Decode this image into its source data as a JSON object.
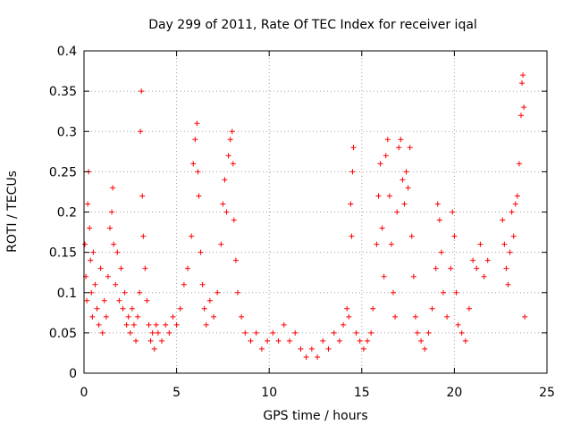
{
  "chart_data": {
    "type": "scatter",
    "title": "Day 299 of 2011, Rate Of TEC Index for receiver iqal",
    "xlabel": "GPS time / hours",
    "ylabel": "ROTI / TECUs",
    "xlim": [
      0,
      25
    ],
    "ylim": [
      0,
      0.4
    ],
    "xticks": [
      0,
      5,
      10,
      15,
      20,
      25
    ],
    "yticks": [
      0,
      0.05,
      0.1,
      0.15,
      0.2,
      0.25,
      0.3,
      0.35,
      0.4
    ],
    "xtick_labels": [
      "0",
      "5",
      "10",
      "15",
      "20",
      "25"
    ],
    "ytick_labels": [
      "0",
      "0.05",
      "0.1",
      "0.15",
      "0.2",
      "0.25",
      "0.3",
      "0.35",
      "0.4"
    ],
    "grid": true,
    "marker": "+",
    "color": "#ff0000",
    "series": [
      {
        "points": [
          [
            0.05,
            0.16
          ],
          [
            0.1,
            0.12
          ],
          [
            0.15,
            0.09
          ],
          [
            0.2,
            0.21
          ],
          [
            0.25,
            0.25
          ],
          [
            0.3,
            0.18
          ],
          [
            0.35,
            0.14
          ],
          [
            0.4,
            0.1
          ],
          [
            0.45,
            0.07
          ],
          [
            0.5,
            0.15
          ],
          [
            0.6,
            0.11
          ],
          [
            0.7,
            0.08
          ],
          [
            0.8,
            0.06
          ],
          [
            0.9,
            0.13
          ],
          [
            1.0,
            0.05
          ],
          [
            1.1,
            0.09
          ],
          [
            1.2,
            0.07
          ],
          [
            1.3,
            0.12
          ],
          [
            1.4,
            0.18
          ],
          [
            1.5,
            0.2
          ],
          [
            1.55,
            0.23
          ],
          [
            1.6,
            0.16
          ],
          [
            1.7,
            0.11
          ],
          [
            1.8,
            0.15
          ],
          [
            1.9,
            0.09
          ],
          [
            2.0,
            0.13
          ],
          [
            2.1,
            0.08
          ],
          [
            2.2,
            0.1
          ],
          [
            2.3,
            0.06
          ],
          [
            2.4,
            0.07
          ],
          [
            2.5,
            0.05
          ],
          [
            2.6,
            0.08
          ],
          [
            2.7,
            0.06
          ],
          [
            2.8,
            0.04
          ],
          [
            2.9,
            0.07
          ],
          [
            3.0,
            0.1
          ],
          [
            3.05,
            0.3
          ],
          [
            3.1,
            0.35
          ],
          [
            3.15,
            0.22
          ],
          [
            3.2,
            0.17
          ],
          [
            3.3,
            0.13
          ],
          [
            3.4,
            0.09
          ],
          [
            3.5,
            0.06
          ],
          [
            3.6,
            0.04
          ],
          [
            3.7,
            0.05
          ],
          [
            3.8,
            0.03
          ],
          [
            3.9,
            0.06
          ],
          [
            4.0,
            0.05
          ],
          [
            4.2,
            0.04
          ],
          [
            4.4,
            0.06
          ],
          [
            4.6,
            0.05
          ],
          [
            4.8,
            0.07
          ],
          [
            5.0,
            0.06
          ],
          [
            5.2,
            0.08
          ],
          [
            5.4,
            0.11
          ],
          [
            5.6,
            0.13
          ],
          [
            5.8,
            0.17
          ],
          [
            5.9,
            0.26
          ],
          [
            6.0,
            0.29
          ],
          [
            6.1,
            0.31
          ],
          [
            6.15,
            0.25
          ],
          [
            6.2,
            0.22
          ],
          [
            6.3,
            0.15
          ],
          [
            6.4,
            0.11
          ],
          [
            6.5,
            0.08
          ],
          [
            6.6,
            0.06
          ],
          [
            6.8,
            0.09
          ],
          [
            7.0,
            0.07
          ],
          [
            7.2,
            0.1
          ],
          [
            7.4,
            0.16
          ],
          [
            7.5,
            0.21
          ],
          [
            7.6,
            0.24
          ],
          [
            7.7,
            0.2
          ],
          [
            7.8,
            0.27
          ],
          [
            7.9,
            0.29
          ],
          [
            8.0,
            0.3
          ],
          [
            8.05,
            0.26
          ],
          [
            8.1,
            0.19
          ],
          [
            8.2,
            0.14
          ],
          [
            8.3,
            0.1
          ],
          [
            8.5,
            0.07
          ],
          [
            8.7,
            0.05
          ],
          [
            9.0,
            0.04
          ],
          [
            9.3,
            0.05
          ],
          [
            9.6,
            0.03
          ],
          [
            9.9,
            0.04
          ],
          [
            10.2,
            0.05
          ],
          [
            10.5,
            0.04
          ],
          [
            10.8,
            0.06
          ],
          [
            11.1,
            0.04
          ],
          [
            11.4,
            0.05
          ],
          [
            11.7,
            0.03
          ],
          [
            12.0,
            0.02
          ],
          [
            12.3,
            0.03
          ],
          [
            12.6,
            0.02
          ],
          [
            12.9,
            0.04
          ],
          [
            13.2,
            0.03
          ],
          [
            13.5,
            0.05
          ],
          [
            13.8,
            0.04
          ],
          [
            14.0,
            0.06
          ],
          [
            14.2,
            0.08
          ],
          [
            14.3,
            0.07
          ],
          [
            14.4,
            0.21
          ],
          [
            14.45,
            0.17
          ],
          [
            14.5,
            0.25
          ],
          [
            14.55,
            0.28
          ],
          [
            14.7,
            0.05
          ],
          [
            14.9,
            0.04
          ],
          [
            15.1,
            0.03
          ],
          [
            15.3,
            0.04
          ],
          [
            15.5,
            0.05
          ],
          [
            15.6,
            0.08
          ],
          [
            15.8,
            0.16
          ],
          [
            15.9,
            0.22
          ],
          [
            16.0,
            0.26
          ],
          [
            16.1,
            0.18
          ],
          [
            16.2,
            0.12
          ],
          [
            16.3,
            0.27
          ],
          [
            16.4,
            0.29
          ],
          [
            16.5,
            0.22
          ],
          [
            16.6,
            0.16
          ],
          [
            16.7,
            0.1
          ],
          [
            16.8,
            0.07
          ],
          [
            16.9,
            0.2
          ],
          [
            17.0,
            0.28
          ],
          [
            17.1,
            0.29
          ],
          [
            17.2,
            0.24
          ],
          [
            17.3,
            0.21
          ],
          [
            17.4,
            0.25
          ],
          [
            17.5,
            0.23
          ],
          [
            17.6,
            0.28
          ],
          [
            17.7,
            0.17
          ],
          [
            17.8,
            0.12
          ],
          [
            17.9,
            0.07
          ],
          [
            18.0,
            0.05
          ],
          [
            18.2,
            0.04
          ],
          [
            18.4,
            0.03
          ],
          [
            18.6,
            0.05
          ],
          [
            18.8,
            0.08
          ],
          [
            19.0,
            0.13
          ],
          [
            19.1,
            0.21
          ],
          [
            19.2,
            0.19
          ],
          [
            19.3,
            0.15
          ],
          [
            19.4,
            0.1
          ],
          [
            19.6,
            0.07
          ],
          [
            19.8,
            0.13
          ],
          [
            19.9,
            0.2
          ],
          [
            20.0,
            0.17
          ],
          [
            20.1,
            0.1
          ],
          [
            20.2,
            0.06
          ],
          [
            20.4,
            0.05
          ],
          [
            20.6,
            0.04
          ],
          [
            20.8,
            0.08
          ],
          [
            21.0,
            0.14
          ],
          [
            21.2,
            0.13
          ],
          [
            21.4,
            0.16
          ],
          [
            21.6,
            0.12
          ],
          [
            21.8,
            0.14
          ],
          [
            22.6,
            0.19
          ],
          [
            22.7,
            0.16
          ],
          [
            22.8,
            0.13
          ],
          [
            22.9,
            0.11
          ],
          [
            23.0,
            0.15
          ],
          [
            23.1,
            0.2
          ],
          [
            23.2,
            0.17
          ],
          [
            23.3,
            0.21
          ],
          [
            23.4,
            0.22
          ],
          [
            23.5,
            0.26
          ],
          [
            23.6,
            0.32
          ],
          [
            23.65,
            0.36
          ],
          [
            23.7,
            0.37
          ],
          [
            23.75,
            0.33
          ],
          [
            23.8,
            0.07
          ]
        ]
      }
    ]
  }
}
